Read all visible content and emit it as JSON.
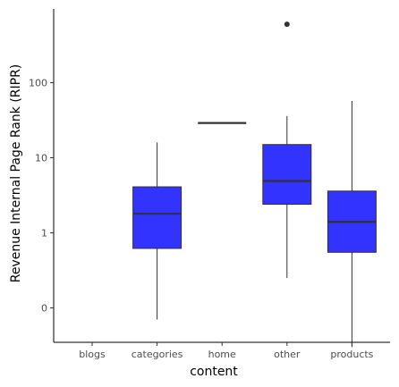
{
  "chart_data": {
    "type": "box",
    "title": "",
    "xlabel": "content",
    "ylabel": "Revenue Internal Page Rank (RIPR)",
    "y_scale": "log10 with 0 mapped to the tick labelled 0",
    "ytick_labels": [
      "0",
      "1",
      "10",
      "100"
    ],
    "ytick_values": [
      0.1,
      1,
      10,
      100
    ],
    "ylim": [
      0.028,
      1000
    ],
    "grid": false,
    "legend": "none",
    "categories": [
      "blogs",
      "categories",
      "home",
      "other",
      "products"
    ],
    "boxes": [
      {
        "category": "blogs",
        "present": false
      },
      {
        "category": "categories",
        "min": 0.07,
        "q1": 0.62,
        "median": 1.8,
        "q3": 4.1,
        "max": 16,
        "outliers": []
      },
      {
        "category": "home",
        "min": 29,
        "q1": 29,
        "median": 29,
        "q3": 29,
        "max": 29,
        "outliers": []
      },
      {
        "category": "other",
        "min": 0.25,
        "q1": 2.4,
        "median": 4.9,
        "q3": 15,
        "max": 36,
        "outliers": [
          600
        ]
      },
      {
        "category": "products",
        "min": 0.03,
        "q1": 0.55,
        "median": 1.4,
        "q3": 3.6,
        "max": 57,
        "outliers": []
      }
    ],
    "colors": {
      "box_fill": "#3333ff",
      "line": "#333333",
      "axis": "#000000"
    }
  }
}
